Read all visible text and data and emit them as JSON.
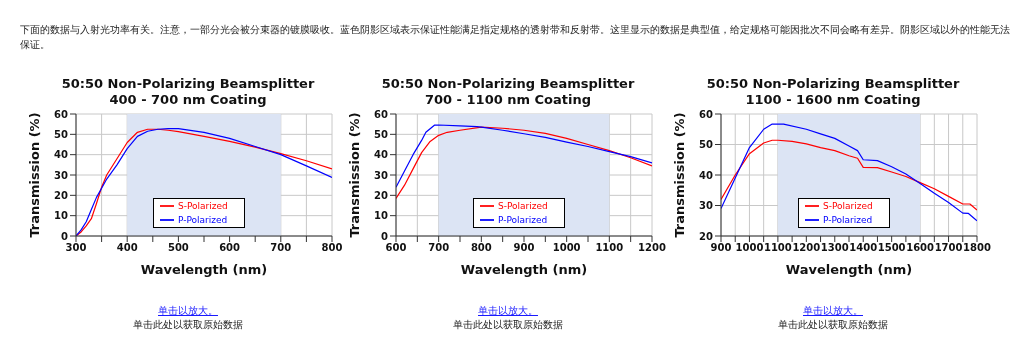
{
  "chart_data": [
    {
      "type": "other",
      "annotations": [
        "下面的数据与入射光功率有关。注意，一部分光会被分束器的镀膜吸收。蓝色阴影区域表示保证性能满足指定规格的透射带和反射带。这里显示的数据是典型值，给定规格可能因批次不同会略有差异。阴影区域以外的性能无法保证。"
      ]
    },
    {
      "type": "line",
      "title": "50:50 Non-Polarizing Beamsplitter",
      "subtitle": "400 - 700 nm Coating",
      "xlabel": "Wavelength (nm)",
      "ylabel": "Transmission (%)",
      "xlim": [
        300,
        800
      ],
      "xticks": [
        300,
        {
          "value": 350,
          "label": null
        },
        400,
        {
          "value": 450,
          "label": null
        },
        500,
        {
          "value": 550,
          "label": null
        },
        600,
        {
          "value": 650,
          "label": null
        },
        700,
        {
          "value": 750,
          "label": null
        },
        800
      ],
      "ylim": [
        0,
        60
      ],
      "yticks": [
        0,
        10,
        20,
        30,
        40,
        50,
        60
      ],
      "grid": true,
      "legend": "bottom",
      "bands": [
        {
          "axis": "x",
          "from": 400,
          "to": 700,
          "color": "#dce4f4"
        }
      ],
      "series": [
        {
          "name": "S-Polarized",
          "color": "#ff0000",
          "x": [
            300,
            310,
            320,
            330,
            340,
            350,
            360,
            380,
            400,
            420,
            440,
            460,
            480,
            500,
            550,
            600,
            650,
            700,
            750,
            800
          ],
          "values": [
            0,
            2,
            5,
            8.5,
            16,
            24,
            30,
            38,
            46,
            51,
            52.5,
            52.5,
            52,
            51.3,
            49,
            46.5,
            43.7,
            40.5,
            37,
            33
          ]
        },
        {
          "name": "P-Polarized",
          "color": "#0000ff",
          "x": [
            300,
            310,
            320,
            330,
            340,
            350,
            360,
            380,
            400,
            420,
            440,
            460,
            480,
            500,
            550,
            600,
            650,
            700,
            750,
            800
          ],
          "values": [
            0,
            3,
            7,
            13,
            19,
            23.5,
            28,
            35,
            43,
            49,
            51.5,
            52.5,
            52.8,
            52.8,
            51,
            48,
            44,
            40,
            34.5,
            28.8
          ]
        }
      ],
      "annotations": [
        "单击以放大。",
        "单击此处以获取原始数据"
      ]
    },
    {
      "type": "line",
      "title": "50:50 Non-Polarizing Beamsplitter",
      "subtitle": "700 - 1100 nm Coating",
      "xlabel": "Wavelength (nm)",
      "ylabel": "Transmission (%)",
      "xlim": [
        600,
        1200
      ],
      "xticks": [
        600,
        {
          "value": 650,
          "label": null
        },
        700,
        {
          "value": 750,
          "label": null
        },
        800,
        {
          "value": 850,
          "label": null
        },
        900,
        {
          "value": 950,
          "label": null
        },
        1000,
        {
          "value": 1050,
          "label": null
        },
        1100,
        {
          "value": 1150,
          "label": null
        },
        1200
      ],
      "ylim": [
        0,
        60
      ],
      "yticks": [
        0,
        10,
        20,
        30,
        40,
        50,
        60
      ],
      "grid": true,
      "legend": "bottom",
      "bands": [
        {
          "axis": "x",
          "from": 700,
          "to": 1100,
          "color": "#dce4f4"
        }
      ],
      "series": [
        {
          "name": "S-Polarized",
          "color": "#ff0000",
          "x": [
            600,
            620,
            640,
            660,
            680,
            700,
            720,
            750,
            800,
            850,
            900,
            950,
            1000,
            1050,
            1100,
            1150,
            1200
          ],
          "values": [
            18.5,
            25,
            33,
            41,
            46.5,
            49.5,
            51,
            52,
            53.5,
            53,
            52,
            50.5,
            48,
            45,
            42,
            38.5,
            34.5
          ]
        },
        {
          "name": "P-Polarized",
          "color": "#0000ff",
          "x": [
            600,
            620,
            640,
            660,
            670,
            690,
            700,
            750,
            790,
            800,
            850,
            900,
            950,
            1000,
            1050,
            1100,
            1150,
            1200
          ],
          "values": [
            24,
            32,
            40,
            47,
            51,
            54.5,
            54.6,
            54.2,
            53.8,
            53.5,
            52,
            50.3,
            48.5,
            46.2,
            44,
            41.5,
            39,
            36
          ]
        }
      ],
      "annotations": [
        "单击以放大。",
        "单击此处以获取原始数据"
      ]
    },
    {
      "type": "line",
      "title": "50:50 Non-Polarizing Beamsplitter",
      "subtitle": "1100 - 1600 nm Coating",
      "xlabel": "Wavelength (nm)",
      "ylabel": "Transmission (%)",
      "xlim": [
        900,
        1800
      ],
      "xticks": [
        900,
        {
          "value": 950,
          "label": null
        },
        1000,
        {
          "value": 1050,
          "label": null
        },
        1100,
        {
          "value": 1150,
          "label": null
        },
        1200,
        {
          "value": 1250,
          "label": null
        },
        1300,
        {
          "value": 1350,
          "label": null
        },
        1400,
        {
          "value": 1450,
          "label": null
        },
        1500,
        {
          "value": 1550,
          "label": null
        },
        1600,
        {
          "value": 1650,
          "label": null
        },
        1700,
        {
          "value": 1750,
          "label": null
        },
        1800
      ],
      "ylim": [
        20,
        60
      ],
      "yticks": [
        20,
        30,
        40,
        50,
        60
      ],
      "grid": true,
      "legend": "bottom",
      "bands": [
        {
          "axis": "x",
          "from": 1100,
          "to": 1600,
          "color": "#dce4f4"
        }
      ],
      "series": [
        {
          "name": "S-Polarized",
          "color": "#ff0000",
          "x": [
            900,
            950,
            1000,
            1050,
            1080,
            1100,
            1150,
            1200,
            1250,
            1300,
            1350,
            1380,
            1400,
            1450,
            1500,
            1550,
            1600,
            1650,
            1700,
            1750,
            1775,
            1800
          ],
          "values": [
            32,
            40,
            47,
            50.5,
            51.4,
            51.4,
            51,
            50.2,
            49,
            48,
            46.3,
            45.5,
            42.5,
            42.4,
            41,
            39.5,
            37.5,
            35.5,
            33,
            30.5,
            30.5,
            28.5
          ]
        },
        {
          "name": "P-Polarized",
          "color": "#0000ff",
          "x": [
            900,
            950,
            1000,
            1050,
            1080,
            1120,
            1200,
            1250,
            1300,
            1350,
            1380,
            1400,
            1450,
            1500,
            1550,
            1600,
            1650,
            1700,
            1750,
            1770,
            1800
          ],
          "values": [
            29,
            39,
            49,
            55,
            56.7,
            56.7,
            55,
            53.5,
            52,
            49.5,
            48,
            45,
            44.7,
            42.7,
            40.3,
            37.2,
            34,
            31,
            27.5,
            27.4,
            25
          ]
        }
      ],
      "annotations": [
        "单击以放大。",
        "单击此处以获取原始数据"
      ]
    }
  ]
}
